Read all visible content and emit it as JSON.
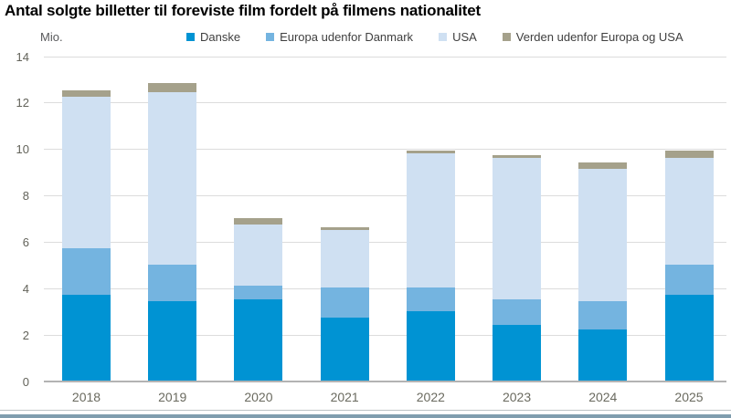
{
  "chart_data": {
    "type": "bar",
    "variant": "stacked-column",
    "title": "Antal solgte billetter til foreviste film fordelt på filmens nationalitet",
    "unit": "Mio.",
    "xlabel": "",
    "ylabel": "Mio.",
    "categories": [
      "2018",
      "2019",
      "2020",
      "2021",
      "2022",
      "2023",
      "2024",
      "2025"
    ],
    "series": [
      {
        "name": "Danske",
        "color": "#0093d3",
        "values": [
          3.7,
          3.4,
          3.5,
          2.7,
          3.0,
          2.4,
          2.2,
          3.7
        ]
      },
      {
        "name": "Europa udenfor Danmark",
        "color": "#74b4e0",
        "values": [
          2.0,
          1.6,
          0.6,
          1.3,
          1.0,
          1.1,
          1.2,
          1.3
        ]
      },
      {
        "name": "USA",
        "color": "#cfe0f2",
        "values": [
          6.5,
          7.4,
          2.6,
          2.5,
          5.8,
          6.1,
          5.7,
          4.6
        ]
      },
      {
        "name": "Verden udenfor Europa og USA",
        "color": "#a5a18b",
        "values": [
          0.3,
          0.4,
          0.3,
          0.1,
          0.1,
          0.1,
          0.3,
          0.3
        ]
      }
    ],
    "totals": [
      12.5,
      12.8,
      7.0,
      6.6,
      9.9,
      9.7,
      9.4,
      9.9
    ],
    "yticks": [
      0,
      2,
      4,
      6,
      8,
      10,
      12,
      14
    ],
    "ylim": [
      0,
      14
    ],
    "grid": true,
    "legend_position": "top"
  },
  "footer": {
    "divider_color": "#bcc2c4",
    "strip_color": "#7f9dae"
  }
}
